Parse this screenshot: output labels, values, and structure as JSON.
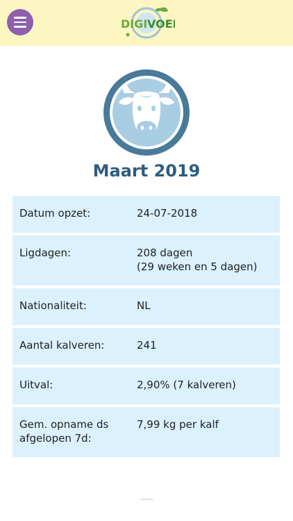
{
  "header": {
    "menu_icon": "hamburger-menu-icon",
    "logo_text": "DIGIVOER",
    "logo_text_digi": "DIGI",
    "logo_text_voer": "VOER"
  },
  "colors": {
    "header_bg": "#fdf6c3",
    "menu_button": "#8e5fad",
    "title": "#2e5d7d",
    "row_bg": "#dbf1fd",
    "cow_icon_ring": "#497a98",
    "cow_icon_fill": "#a9cde3",
    "logo_green": "#6aaa3a"
  },
  "cow_icon": "cow-face-icon",
  "page": {
    "title": "Maart 2019"
  },
  "info": {
    "rows": [
      {
        "label": "Datum opzet:",
        "value": "24-07-2018",
        "value_line2": ""
      },
      {
        "label": "Ligdagen:",
        "value": "208 dagen",
        "value_line2": "(29 weken en 5 dagen)"
      },
      {
        "label": "Nationaliteit:",
        "value": "NL",
        "value_line2": ""
      },
      {
        "label": "Aantal kalveren:",
        "value": "241",
        "value_line2": ""
      },
      {
        "label": "Uitval:",
        "value": "2,90% (7 kalveren)",
        "value_line2": ""
      },
      {
        "label": "Gem. opname ds",
        "label_line2": "afgelopen 7d:",
        "value": "7,99 kg per kalf",
        "value_line2": ""
      }
    ]
  }
}
